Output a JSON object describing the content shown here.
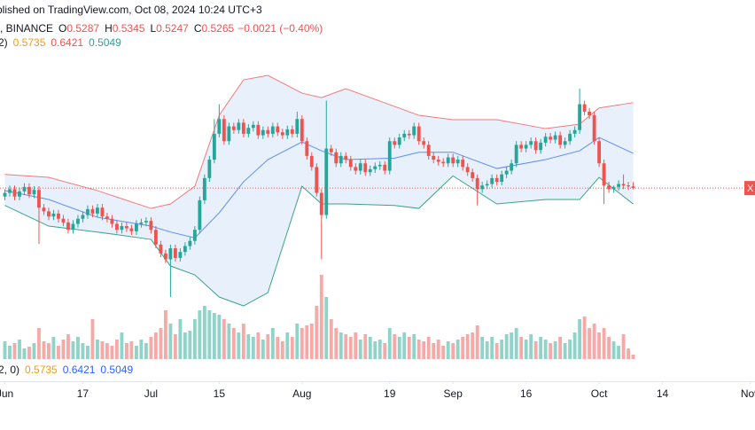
{
  "chart_data": {
    "type": "candlestick",
    "header": "blished on TradingView.com, Oct 08, 2024 10:24 UTC+3",
    "symbol": "), BINANCE",
    "ohlc": [
      {
        "key": "O",
        "value": "0.5287"
      },
      {
        "key": "H",
        "value": "0.5345"
      },
      {
        "key": "L",
        "value": "0.5247"
      },
      {
        "key": "C",
        "value": "0.5265"
      }
    ],
    "change": "−0.0021 (−0.40%)",
    "bb_legend": {
      "prefix": "2)",
      "values": [
        "0.5735",
        "0.6421",
        "0.5049"
      ]
    },
    "bb_legend_bottom": {
      "prefix": "2, 0)",
      "values": [
        "0.5735",
        "0.6421",
        "0.5049"
      ]
    },
    "price_label": "X",
    "up_color": "#26a69a",
    "down_color": "#ef5350",
    "volume_up_color": "#8fd3c9",
    "volume_down_color": "#f7a9a7",
    "categories": [
      "Jun 01",
      "Jun 02",
      "Jun 03",
      "Jun 04",
      "Jun 05",
      "Jun 06",
      "Jun 07",
      "Jun 08",
      "Jun 09",
      "Jun 10",
      "Jun 11",
      "Jun 12",
      "Jun 13",
      "Jun 14",
      "Jun 15",
      "Jun 16",
      "Jun 17",
      "Jun 18",
      "Jun 19",
      "Jun 20",
      "Jun 21",
      "Jun 22",
      "Jun 23",
      "Jun 24",
      "Jun 25",
      "Jun 26",
      "Jun 27",
      "Jun 28",
      "Jun 29",
      "Jun 30",
      "Jul 01",
      "Jul 02",
      "Jul 03",
      "Jul 04",
      "Jul 05",
      "Jul 06",
      "Jul 07",
      "Jul 08",
      "Jul 09",
      "Jul 10",
      "Jul 11",
      "Jul 12",
      "Jul 13",
      "Jul 14",
      "Jul 15",
      "Jul 16",
      "Jul 17",
      "Jul 18",
      "Jul 19",
      "Jul 20",
      "Jul 21",
      "Jul 22",
      "Jul 23",
      "Jul 24",
      "Jul 25",
      "Jul 26",
      "Jul 27",
      "Jul 28",
      "Jul 29",
      "Jul 30",
      "Jul 31",
      "Aug 01",
      "Aug 02",
      "Aug 03",
      "Aug 04",
      "Aug 05",
      "Aug 06",
      "Aug 07",
      "Aug 08",
      "Aug 09",
      "Aug 10",
      "Aug 11",
      "Aug 12",
      "Aug 13",
      "Aug 14",
      "Aug 15",
      "Aug 16",
      "Aug 17",
      "Aug 18",
      "Aug 19",
      "Aug 20",
      "Aug 21",
      "Aug 22",
      "Aug 23",
      "Aug 24",
      "Aug 25",
      "Aug 26",
      "Aug 27",
      "Aug 28",
      "Aug 29",
      "Aug 30",
      "Aug 31",
      "Sep 01",
      "Sep 02",
      "Sep 03",
      "Sep 04",
      "Sep 05",
      "Sep 06",
      "Sep 07",
      "Sep 08",
      "Sep 09",
      "Sep 10",
      "Sep 11",
      "Sep 12",
      "Sep 13",
      "Sep 14",
      "Sep 15",
      "Sep 16",
      "Sep 17",
      "Sep 18",
      "Sep 19",
      "Sep 20",
      "Sep 21",
      "Sep 22",
      "Sep 23",
      "Sep 24",
      "Sep 25",
      "Sep 26",
      "Sep 27",
      "Sep 28",
      "Sep 29",
      "Sep 30",
      "Oct 01",
      "Oct 02",
      "Oct 03",
      "Oct 04",
      "Oct 05",
      "Oct 06",
      "Oct 07",
      "Oct 08"
    ],
    "open": [
      0.515,
      0.52,
      0.525,
      0.515,
      0.522,
      0.528,
      0.518,
      0.524,
      0.5,
      0.495,
      0.488,
      0.492,
      0.485,
      0.48,
      0.47,
      0.478,
      0.485,
      0.49,
      0.498,
      0.492,
      0.5,
      0.488,
      0.485,
      0.478,
      0.47,
      0.475,
      0.472,
      0.468,
      0.478,
      0.48,
      0.482,
      0.47,
      0.45,
      0.438,
      0.43,
      0.445,
      0.432,
      0.44,
      0.448,
      0.455,
      0.47,
      0.51,
      0.54,
      0.565,
      0.6,
      0.62,
      0.59,
      0.61,
      0.605,
      0.615,
      0.6,
      0.608,
      0.612,
      0.598,
      0.605,
      0.6,
      0.61,
      0.602,
      0.598,
      0.606,
      0.6,
      0.62,
      0.59,
      0.57,
      0.555,
      0.52,
      0.49,
      0.58,
      0.575,
      0.56,
      0.57,
      0.565,
      0.555,
      0.55,
      0.56,
      0.548,
      0.552,
      0.556,
      0.558,
      0.55,
      0.59,
      0.585,
      0.595,
      0.6,
      0.598,
      0.61,
      0.59,
      0.585,
      0.57,
      0.565,
      0.562,
      0.56,
      0.568,
      0.56,
      0.565,
      0.555,
      0.548,
      0.54,
      0.525,
      0.53,
      0.532,
      0.54,
      0.535,
      0.545,
      0.55,
      0.56,
      0.585,
      0.58,
      0.585,
      0.59,
      0.578,
      0.588,
      0.596,
      0.592,
      0.598,
      0.585,
      0.59,
      0.6,
      0.605,
      0.64,
      0.63,
      0.625,
      0.59,
      0.56,
      0.53,
      0.525,
      0.528,
      0.532,
      0.53,
      0.5287
    ],
    "high": [
      0.525,
      0.53,
      0.53,
      0.527,
      0.533,
      0.533,
      0.529,
      0.529,
      0.505,
      0.5,
      0.497,
      0.497,
      0.49,
      0.485,
      0.483,
      0.49,
      0.495,
      0.503,
      0.503,
      0.505,
      0.505,
      0.493,
      0.49,
      0.483,
      0.48,
      0.48,
      0.477,
      0.483,
      0.485,
      0.487,
      0.487,
      0.475,
      0.455,
      0.443,
      0.45,
      0.45,
      0.445,
      0.453,
      0.46,
      0.475,
      0.515,
      0.545,
      0.57,
      0.62,
      0.64,
      0.625,
      0.615,
      0.615,
      0.62,
      0.62,
      0.613,
      0.617,
      0.617,
      0.61,
      0.61,
      0.615,
      0.615,
      0.607,
      0.611,
      0.611,
      0.63,
      0.625,
      0.595,
      0.575,
      0.56,
      0.525,
      0.645,
      0.585,
      0.58,
      0.575,
      0.575,
      0.57,
      0.56,
      0.565,
      0.565,
      0.557,
      0.561,
      0.563,
      0.563,
      0.595,
      0.595,
      0.6,
      0.605,
      0.605,
      0.615,
      0.615,
      0.595,
      0.59,
      0.575,
      0.57,
      0.567,
      0.573,
      0.573,
      0.57,
      0.57,
      0.56,
      0.553,
      0.545,
      0.535,
      0.537,
      0.545,
      0.545,
      0.55,
      0.555,
      0.565,
      0.59,
      0.59,
      0.59,
      0.595,
      0.595,
      0.593,
      0.601,
      0.601,
      0.603,
      0.603,
      0.595,
      0.605,
      0.61,
      0.661,
      0.645,
      0.635,
      0.63,
      0.595,
      0.565,
      0.535,
      0.53,
      0.537,
      0.545,
      0.535,
      0.5345
    ],
    "low": [
      0.51,
      0.515,
      0.51,
      0.51,
      0.517,
      0.513,
      0.513,
      0.451,
      0.49,
      0.483,
      0.483,
      0.48,
      0.475,
      0.465,
      0.465,
      0.473,
      0.48,
      0.485,
      0.487,
      0.487,
      0.483,
      0.48,
      0.473,
      0.465,
      0.465,
      0.467,
      0.463,
      0.463,
      0.473,
      0.475,
      0.465,
      0.445,
      0.433,
      0.425,
      0.379,
      0.427,
      0.427,
      0.435,
      0.443,
      0.45,
      0.465,
      0.505,
      0.535,
      0.56,
      0.595,
      0.585,
      0.585,
      0.6,
      0.6,
      0.595,
      0.595,
      0.603,
      0.593,
      0.593,
      0.595,
      0.595,
      0.597,
      0.593,
      0.593,
      0.595,
      0.595,
      0.585,
      0.565,
      0.55,
      0.515,
      0.43,
      0.485,
      0.57,
      0.555,
      0.555,
      0.56,
      0.55,
      0.545,
      0.545,
      0.543,
      0.543,
      0.547,
      0.551,
      0.545,
      0.545,
      0.58,
      0.58,
      0.59,
      0.593,
      0.593,
      0.585,
      0.58,
      0.565,
      0.56,
      0.557,
      0.555,
      0.555,
      0.555,
      0.555,
      0.55,
      0.543,
      0.535,
      0.503,
      0.52,
      0.525,
      0.527,
      0.53,
      0.53,
      0.54,
      0.545,
      0.555,
      0.575,
      0.575,
      0.58,
      0.573,
      0.573,
      0.583,
      0.587,
      0.587,
      0.58,
      0.58,
      0.585,
      0.595,
      0.6,
      0.625,
      0.62,
      0.585,
      0.555,
      0.505,
      0.52,
      0.52,
      0.523,
      0.525,
      0.524,
      0.5247
    ],
    "close": [
      0.52,
      0.525,
      0.515,
      0.522,
      0.528,
      0.518,
      0.524,
      0.5,
      0.495,
      0.488,
      0.492,
      0.485,
      0.48,
      0.47,
      0.478,
      0.485,
      0.49,
      0.498,
      0.492,
      0.5,
      0.488,
      0.485,
      0.478,
      0.47,
      0.475,
      0.472,
      0.468,
      0.478,
      0.48,
      0.482,
      0.47,
      0.45,
      0.438,
      0.43,
      0.445,
      0.432,
      0.44,
      0.448,
      0.455,
      0.47,
      0.51,
      0.54,
      0.565,
      0.6,
      0.62,
      0.59,
      0.61,
      0.605,
      0.615,
      0.6,
      0.608,
      0.612,
      0.598,
      0.605,
      0.6,
      0.61,
      0.602,
      0.598,
      0.606,
      0.6,
      0.62,
      0.59,
      0.57,
      0.555,
      0.52,
      0.49,
      0.58,
      0.575,
      0.56,
      0.57,
      0.565,
      0.555,
      0.55,
      0.56,
      0.548,
      0.552,
      0.556,
      0.558,
      0.55,
      0.59,
      0.585,
      0.595,
      0.6,
      0.598,
      0.61,
      0.59,
      0.585,
      0.57,
      0.565,
      0.562,
      0.56,
      0.568,
      0.56,
      0.565,
      0.555,
      0.548,
      0.54,
      0.525,
      0.53,
      0.532,
      0.54,
      0.535,
      0.545,
      0.55,
      0.56,
      0.585,
      0.58,
      0.585,
      0.59,
      0.578,
      0.588,
      0.596,
      0.592,
      0.598,
      0.585,
      0.59,
      0.6,
      0.605,
      0.64,
      0.63,
      0.625,
      0.59,
      0.56,
      0.53,
      0.525,
      0.528,
      0.532,
      0.53,
      0.5287,
      0.5265
    ],
    "volume": [
      20,
      15,
      18,
      22,
      12,
      14,
      18,
      35,
      20,
      18,
      25,
      15,
      22,
      28,
      20,
      25,
      18,
      15,
      45,
      22,
      20,
      18,
      15,
      22,
      30,
      18,
      20,
      15,
      22,
      18,
      25,
      30,
      35,
      55,
      40,
      28,
      45,
      30,
      32,
      45,
      55,
      60,
      55,
      52,
      50,
      45,
      40,
      35,
      30,
      40,
      28,
      25,
      30,
      22,
      28,
      35,
      25,
      20,
      30,
      25,
      40,
      35,
      38,
      40,
      60,
      95,
      70,
      45,
      35,
      30,
      28,
      25,
      30,
      22,
      28,
      25,
      20,
      22,
      18,
      35,
      28,
      25,
      30,
      25,
      28,
      22,
      20,
      25,
      18,
      22,
      15,
      20,
      18,
      22,
      25,
      28,
      30,
      38,
      25,
      20,
      25,
      18,
      22,
      28,
      30,
      35,
      25,
      22,
      28,
      20,
      25,
      22,
      18,
      20,
      25,
      18,
      22,
      30,
      45,
      48,
      35,
      40,
      30,
      35,
      25,
      20,
      15,
      28,
      12,
      5
    ],
    "volume_lim": [
      0,
      100
    ],
    "bands": {
      "x": [
        "Jun 01",
        "Jun 10",
        "Jun 20",
        "Jul 01",
        "Jul 05",
        "Jul 10",
        "Jul 15",
        "Jul 20",
        "Jul 25",
        "Aug 01",
        "Aug 05",
        "Aug 10",
        "Aug 20",
        "Aug 25",
        "Sep 01",
        "Sep 10",
        "Sep 20",
        "Sep 27",
        "Oct 01",
        "Oct 08"
      ],
      "basis": [
        0.523,
        0.511,
        0.487,
        0.475,
        0.467,
        0.459,
        0.493,
        0.535,
        0.565,
        0.589,
        0.577,
        0.565,
        0.567,
        0.575,
        0.575,
        0.553,
        0.565,
        0.577,
        0.595,
        0.5735
      ],
      "upper": [
        0.545,
        0.541,
        0.523,
        0.499,
        0.505,
        0.529,
        0.625,
        0.673,
        0.679,
        0.655,
        0.649,
        0.661,
        0.637,
        0.625,
        0.619,
        0.619,
        0.607,
        0.613,
        0.635,
        0.6421
      ],
      "lower": [
        0.503,
        0.475,
        0.467,
        0.457,
        0.421,
        0.409,
        0.379,
        0.367,
        0.385,
        0.529,
        0.505,
        0.505,
        0.503,
        0.499,
        0.543,
        0.505,
        0.511,
        0.511,
        0.541,
        0.5049
      ],
      "basis_color": "#5b8def",
      "upper_color": "#f07b7b",
      "lower_color": "#3aa38b",
      "fill_color": "#e8f1fb"
    },
    "ylim": [
      0.265,
      0.7811
    ],
    "xlim": [
      "May 31",
      "Nov 02"
    ],
    "xticks": [
      {
        "value": "Jun 01",
        "label": "Jun"
      },
      {
        "value": "Jun 17",
        "label": "17"
      },
      {
        "value": "Jul 01",
        "label": "Jul"
      },
      {
        "value": "Jul 15",
        "label": "15"
      },
      {
        "value": "Aug 01",
        "label": "Aug"
      },
      {
        "value": "Aug 19",
        "label": "19"
      },
      {
        "value": "Sep 01",
        "label": "Sep"
      },
      {
        "value": "Sep 16",
        "label": "16"
      },
      {
        "value": "Oct 01",
        "label": "Oct"
      },
      {
        "value": "Oct 14",
        "label": "14"
      },
      {
        "value": "Nov 01",
        "label": "Nov"
      }
    ]
  }
}
